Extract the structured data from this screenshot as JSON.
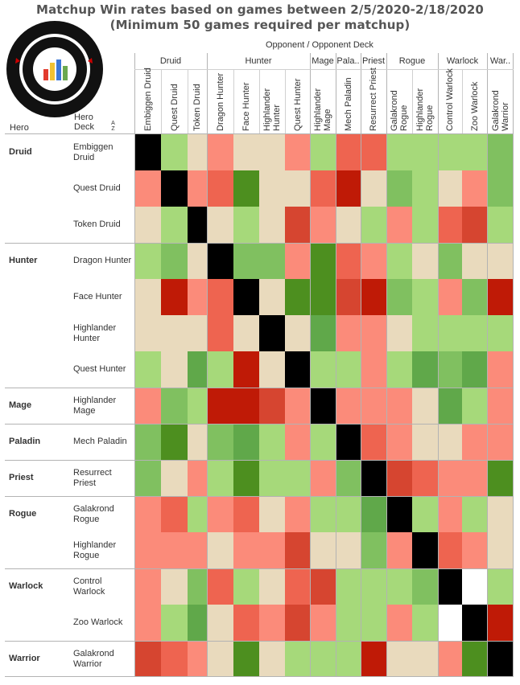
{
  "chart_data": {
    "type": "heatmap",
    "title": "Matchup Win rates based on games between 2/5/2020-2/18/2020",
    "subtitle": "(Minimum 50 games required per matchup)",
    "column_header": "Opponent  /  Opponent Deck",
    "row_header_hero": "Hero",
    "row_header_deck": "Hero Deck",
    "sort_indicator": "A Z",
    "column_groups": [
      "Druid",
      "Hunter",
      "Mage",
      "Pala..",
      "Priest",
      "Rogue",
      "Warlock",
      "War.."
    ],
    "column_group_spans": [
      3,
      4,
      1,
      1,
      1,
      2,
      2,
      1
    ],
    "columns": [
      "Embiggen Druid",
      "Quest Druid",
      "Token Druid",
      "Dragon Hunter",
      "Face Hunter",
      "Highlander Hunter",
      "Quest Hunter",
      "Highlander Mage",
      "Mech Paladin",
      "Resurrect Priest",
      "Galakrond Rogue",
      "Highlander Rogue",
      "Control Warlock",
      "Zoo Warlock",
      "Galakrond Warrior"
    ],
    "column_labels": [
      [
        "Embiggen Druid"
      ],
      [
        "Quest Druid"
      ],
      [
        "Token Druid"
      ],
      [
        "Dragon Hunter"
      ],
      [
        "Face Hunter"
      ],
      [
        "Highlander",
        "Hunter"
      ],
      [
        "Quest Hunter"
      ],
      [
        "Highlander",
        "Mage"
      ],
      [
        "Mech Paladin"
      ],
      [
        "Resurrect Priest"
      ],
      [
        "Galakrond",
        "Rogue"
      ],
      [
        "Highlander",
        "Rogue"
      ],
      [
        "Control Warlock"
      ],
      [
        "Zoo Warlock"
      ],
      [
        "Galakrond",
        "Warrior"
      ]
    ],
    "hero_groups": [
      {
        "hero": "Druid",
        "rows": 3
      },
      {
        "hero": "Hunter",
        "rows": 4
      },
      {
        "hero": "Mage",
        "rows": 1
      },
      {
        "hero": "Paladin",
        "rows": 1
      },
      {
        "hero": "Priest",
        "rows": 1
      },
      {
        "hero": "Rogue",
        "rows": 2
      },
      {
        "hero": "Warlock",
        "rows": 2
      },
      {
        "hero": "Warrior",
        "rows": 1
      }
    ],
    "rows": [
      {
        "label": [
          "Embiggen",
          "Druid"
        ],
        "cells": [
          "X",
          "lg",
          "be",
          "sa",
          "be",
          "be",
          "sa",
          "lg",
          "co",
          "co",
          "lg",
          "lg",
          "lg",
          "lg",
          "mg"
        ]
      },
      {
        "label": [
          "Quest Druid"
        ],
        "cells": [
          "sa",
          "X",
          "sa",
          "co",
          "dg",
          "be",
          "be",
          "co",
          "dr",
          "be",
          "mg",
          "lg",
          "be",
          "sa",
          "mg"
        ]
      },
      {
        "label": [
          "Token Druid"
        ],
        "cells": [
          "be",
          "lg",
          "X",
          "be",
          "lg",
          "be",
          "rr",
          "sa",
          "be",
          "lg",
          "sa",
          "lg",
          "co",
          "rr",
          "lg"
        ]
      },
      {
        "label": [
          "Dragon Hunter"
        ],
        "cells": [
          "lg",
          "mg",
          "be",
          "X",
          "mg",
          "mg",
          "sa",
          "dg",
          "co",
          "sa",
          "lg",
          "be",
          "mg",
          "be",
          "be"
        ]
      },
      {
        "label": [
          "Face Hunter"
        ],
        "cells": [
          "be",
          "dr",
          "sa",
          "co",
          "X",
          "be",
          "dg",
          "dg",
          "rr",
          "dr",
          "mg",
          "lg",
          "sa",
          "mg",
          "dr"
        ]
      },
      {
        "label": [
          "Highlander",
          "Hunter"
        ],
        "cells": [
          "be",
          "be",
          "be",
          "co",
          "be",
          "X",
          "be",
          "mdg",
          "sa",
          "sa",
          "be",
          "lg",
          "lg",
          "lg",
          "lg"
        ]
      },
      {
        "label": [
          "Quest Hunter"
        ],
        "cells": [
          "lg",
          "be",
          "mdg",
          "lg",
          "dr",
          "be",
          "X",
          "lg",
          "lg",
          "sa",
          "lg",
          "mdg",
          "mg",
          "mdg",
          "sa"
        ]
      },
      {
        "label": [
          "Highlander",
          "Mage"
        ],
        "cells": [
          "sa",
          "mg",
          "lg",
          "dr",
          "dr",
          "rr",
          "sa",
          "X",
          "sa",
          "sa",
          "sa",
          "be",
          "mdg",
          "lg",
          "sa"
        ]
      },
      {
        "label": [
          "Mech Paladin"
        ],
        "cells": [
          "mg",
          "dg",
          "be",
          "mg",
          "mdg",
          "lg",
          "sa",
          "lg",
          "X",
          "co",
          "sa",
          "be",
          "be",
          "sa",
          "sa"
        ]
      },
      {
        "label": [
          "Resurrect",
          "Priest"
        ],
        "cells": [
          "mg",
          "be",
          "sa",
          "lg",
          "dg",
          "lg",
          "lg",
          "sa",
          "mg",
          "X",
          "rr",
          "co",
          "sa",
          "sa",
          "dg"
        ]
      },
      {
        "label": [
          "Galakrond",
          "Rogue"
        ],
        "cells": [
          "sa",
          "co",
          "lg",
          "sa",
          "co",
          "be",
          "sa",
          "lg",
          "lg",
          "mdg",
          "X",
          "lg",
          "sa",
          "lg",
          "be"
        ]
      },
      {
        "label": [
          "Highlander",
          "Rogue"
        ],
        "cells": [
          "sa",
          "sa",
          "sa",
          "be",
          "sa",
          "sa",
          "rr",
          "be",
          "be",
          "mg",
          "sa",
          "X",
          "co",
          "sa",
          "be"
        ]
      },
      {
        "label": [
          "Control",
          "Warlock"
        ],
        "cells": [
          "sa",
          "be",
          "mg",
          "co",
          "lg",
          "be",
          "co",
          "rr",
          "lg",
          "lg",
          "lg",
          "mg",
          "X",
          "W",
          "lg"
        ]
      },
      {
        "label": [
          "Zoo Warlock"
        ],
        "cells": [
          "sa",
          "lg",
          "mdg",
          "be",
          "co",
          "sa",
          "rr",
          "sa",
          "lg",
          "lg",
          "sa",
          "lg",
          "W",
          "X",
          "dr"
        ]
      },
      {
        "label": [
          "Galakrond",
          "Warrior"
        ],
        "cells": [
          "rr",
          "co",
          "sa",
          "be",
          "dg",
          "be",
          "lg",
          "lg",
          "lg",
          "dr",
          "be",
          "be",
          "sa",
          "dg",
          "X"
        ]
      }
    ],
    "color_scale": {
      "dr": "#bf1a06",
      "rr": "#d64530",
      "co": "#ee6450",
      "sa": "#fb8b7a",
      "be": "#e9dabd",
      "lg": "#a6d97a",
      "mg": "#80c060",
      "mdg": "#60a84a",
      "dg": "#4d8f1f",
      "X": "#000000",
      "W": "#ffffff"
    }
  }
}
